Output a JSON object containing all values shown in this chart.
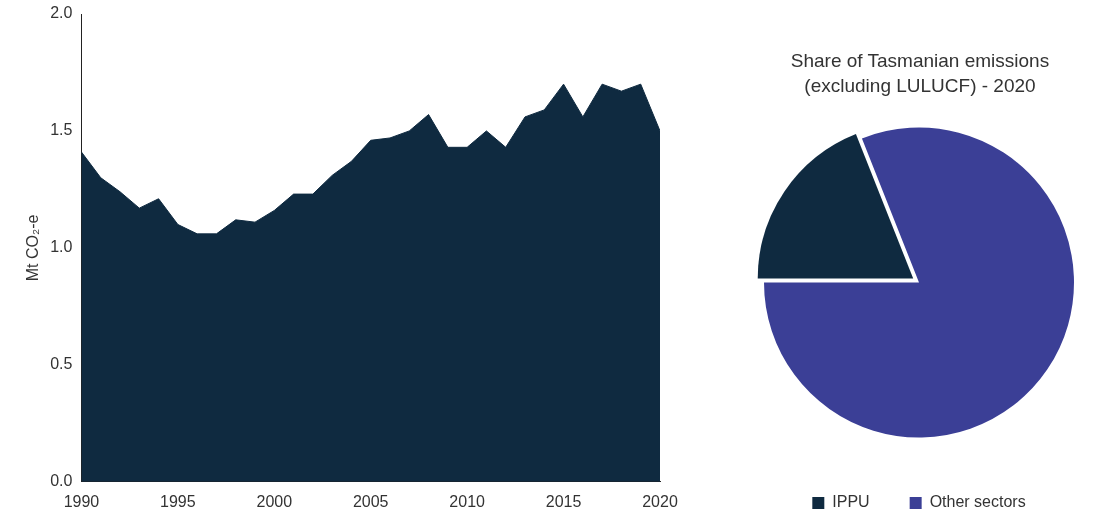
{
  "chart_data": [
    {
      "type": "area",
      "x": [
        1990,
        1991,
        1992,
        1993,
        1994,
        1995,
        1996,
        1997,
        1998,
        1999,
        2000,
        2001,
        2002,
        2003,
        2004,
        2005,
        2006,
        2007,
        2008,
        2009,
        2010,
        2011,
        2012,
        2013,
        2014,
        2015,
        2016,
        2017,
        2018,
        2019,
        2020
      ],
      "series": [
        {
          "color": "#0f2a40",
          "values": [
            1.41,
            1.3,
            1.24,
            1.17,
            1.21,
            1.1,
            1.06,
            1.06,
            1.12,
            1.11,
            1.16,
            1.23,
            1.23,
            1.31,
            1.37,
            1.46,
            1.47,
            1.5,
            1.57,
            1.43,
            1.43,
            1.5,
            1.43,
            1.56,
            1.59,
            1.7,
            1.56,
            1.7,
            1.67,
            1.7,
            1.5
          ]
        }
      ],
      "ylabel": "Mt CO₂-e",
      "xlim": [
        1990,
        2020
      ],
      "xticks": [
        1990,
        1995,
        2000,
        2005,
        2010,
        2015,
        2020
      ],
      "ylim": [
        0,
        2
      ],
      "yticks": [
        {
          "value": 0,
          "label": "0.0"
        },
        {
          "value": 0.5,
          "label": "0.5"
        },
        {
          "value": 1,
          "label": "1.0"
        },
        {
          "value": 1.5,
          "label": "1.5"
        },
        {
          "value": 2,
          "label": "2.0"
        }
      ]
    },
    {
      "type": "pie",
      "title": "Share of Tasmanian emissions (excluding LULUCF) - 2020",
      "categories": [
        "IPPU",
        "Other sectors"
      ],
      "values": [
        19,
        81
      ],
      "colors": [
        "#0f2a40",
        "#3b3f96"
      ],
      "legend": "bottom"
    }
  ]
}
